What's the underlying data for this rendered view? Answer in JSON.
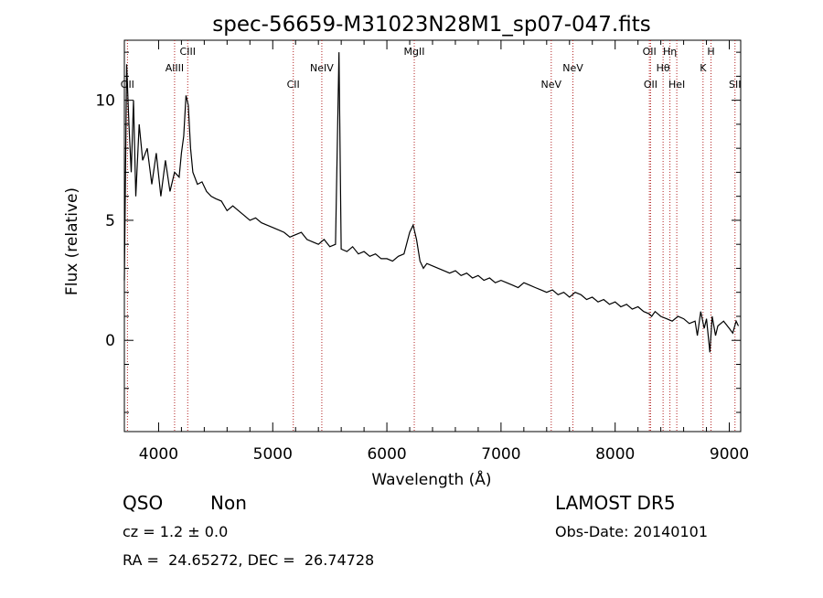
{
  "chart_data": {
    "type": "line",
    "title": "spec-56659-M31023N28M1_sp07-047.fits",
    "xlabel": "Wavelength (Å)",
    "ylabel": "Flux (relative)",
    "xlim": [
      3700,
      9100
    ],
    "ylim": [
      -3.8,
      12.5
    ],
    "xticks": [
      4000,
      5000,
      6000,
      7000,
      8000,
      9000
    ],
    "yticks": [
      0,
      5,
      10
    ],
    "grid": false,
    "legend": "none",
    "line_color": "#000000",
    "marker_color": "#b22222",
    "series": [
      {
        "x": [
          3700,
          3720,
          3740,
          3760,
          3780,
          3800,
          3830,
          3860,
          3900,
          3940,
          3980,
          4020,
          4060,
          4100,
          4140,
          4180,
          4200,
          4220,
          4240,
          4260,
          4280,
          4300,
          4340,
          4380,
          4420,
          4460,
          4500,
          4550,
          4600,
          4650,
          4700,
          4750,
          4800,
          4850,
          4900,
          4950,
          5000,
          5050,
          5100,
          5150,
          5200,
          5250,
          5300,
          5350,
          5400,
          5450,
          5500,
          5550,
          5580,
          5600,
          5650,
          5700,
          5750,
          5800,
          5850,
          5900,
          5950,
          6000,
          6050,
          6100,
          6150,
          6200,
          6230,
          6260,
          6290,
          6320,
          6350,
          6400,
          6450,
          6500,
          6550,
          6600,
          6650,
          6700,
          6750,
          6800,
          6850,
          6900,
          6950,
          7000,
          7050,
          7100,
          7150,
          7200,
          7250,
          7300,
          7350,
          7400,
          7450,
          7500,
          7550,
          7600,
          7650,
          7700,
          7750,
          7800,
          7850,
          7900,
          7950,
          8000,
          8050,
          8100,
          8150,
          8200,
          8250,
          8300,
          8320,
          8350,
          8400,
          8450,
          8500,
          8550,
          8600,
          8650,
          8700,
          8720,
          8750,
          8780,
          8800,
          8830,
          8850,
          8880,
          8900,
          8950,
          9000,
          9030,
          9060,
          9080
        ],
        "y": [
          2.5,
          11.5,
          9.0,
          7.0,
          10.0,
          6.0,
          9.0,
          7.5,
          8.0,
          6.5,
          7.8,
          6.0,
          7.5,
          6.2,
          7.0,
          6.8,
          7.8,
          8.5,
          10.2,
          9.8,
          8.0,
          7.0,
          6.5,
          6.6,
          6.2,
          6.0,
          5.9,
          5.8,
          5.4,
          5.6,
          5.4,
          5.2,
          5.0,
          5.1,
          4.9,
          4.8,
          4.7,
          4.6,
          4.5,
          4.3,
          4.4,
          4.5,
          4.2,
          4.1,
          4.0,
          4.2,
          3.9,
          4.0,
          12.0,
          3.8,
          3.7,
          3.9,
          3.6,
          3.7,
          3.5,
          3.6,
          3.4,
          3.4,
          3.3,
          3.5,
          3.6,
          4.5,
          4.8,
          4.2,
          3.3,
          3.0,
          3.2,
          3.1,
          3.0,
          2.9,
          2.8,
          2.9,
          2.7,
          2.8,
          2.6,
          2.7,
          2.5,
          2.6,
          2.4,
          2.5,
          2.4,
          2.3,
          2.2,
          2.4,
          2.3,
          2.2,
          2.1,
          2.0,
          2.1,
          1.9,
          2.0,
          1.8,
          2.0,
          1.9,
          1.7,
          1.8,
          1.6,
          1.7,
          1.5,
          1.6,
          1.4,
          1.5,
          1.3,
          1.4,
          1.2,
          1.1,
          1.0,
          1.2,
          1.0,
          0.9,
          0.8,
          1.0,
          0.9,
          0.7,
          0.8,
          0.2,
          1.2,
          0.5,
          0.9,
          -0.5,
          1.0,
          0.2,
          0.6,
          0.8,
          0.5,
          0.3,
          0.8,
          0.6
        ]
      }
    ],
    "lines": [
      {
        "label": "OII",
        "x": 3727,
        "row": 2
      },
      {
        "label": "AlIII",
        "x": 4140,
        "row": 1
      },
      {
        "label": "CIII",
        "x": 4255,
        "row": 0
      },
      {
        "label": "CII",
        "x": 5180,
        "row": 2
      },
      {
        "label": "NeIV",
        "x": 5430,
        "row": 1
      },
      {
        "label": "MgII",
        "x": 6240,
        "row": 0
      },
      {
        "label": "NeV",
        "x": 7440,
        "row": 2
      },
      {
        "label": "NeV",
        "x": 7630,
        "row": 1
      },
      {
        "label": "OII",
        "x": 8300,
        "row": 0
      },
      {
        "label": "OII",
        "x": 8310,
        "row": 2
      },
      {
        "label": "Hη",
        "x": 8480,
        "row": 0
      },
      {
        "label": "Hθ",
        "x": 8420,
        "row": 1
      },
      {
        "label": "HeI",
        "x": 8540,
        "row": 2
      },
      {
        "label": "K",
        "x": 8770,
        "row": 1
      },
      {
        "label": "H",
        "x": 8840,
        "row": 0
      },
      {
        "label": "SII",
        "x": 9050,
        "row": 2
      }
    ]
  },
  "info": {
    "class": "QSO",
    "subclass": "Non",
    "cz": "cz = 1.2 ± 0.0",
    "coords": "RA =  24.65272, DEC =  26.74728",
    "release": "LAMOST DR5",
    "obs_date": "Obs-Date: 20140101"
  }
}
